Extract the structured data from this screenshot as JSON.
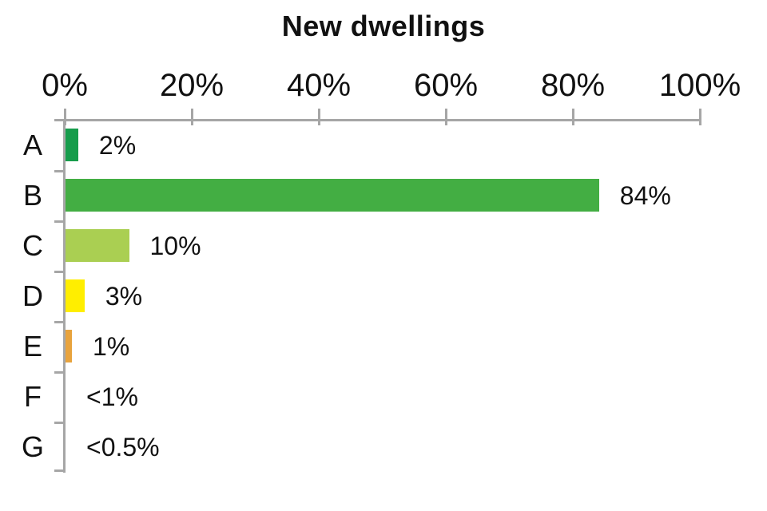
{
  "title": "New dwellings",
  "colors": {
    "axis": "#A6A6A6",
    "text": "#111111",
    "background": "#FFFFFF"
  },
  "chart_data": {
    "type": "bar",
    "orientation": "horizontal",
    "title": "New dwellings",
    "categories": [
      "A",
      "B",
      "C",
      "D",
      "E",
      "F",
      "G"
    ],
    "values": [
      2,
      84,
      10,
      3,
      1,
      0,
      0
    ],
    "value_labels": [
      "2%",
      "84%",
      "10%",
      "3%",
      "1%",
      "<1%",
      "<0.5%"
    ],
    "bar_colors": [
      "#169C4B",
      "#43AE43",
      "#AACF52",
      "#FFEE00",
      "#E8A33D",
      null,
      null
    ],
    "xlim": [
      0,
      100
    ],
    "x_ticks": [
      0,
      20,
      40,
      60,
      80,
      100
    ],
    "x_tick_labels": [
      "0%",
      "20%",
      "40%",
      "60%",
      "80%",
      "100%"
    ],
    "axis_position": "top",
    "grid": false,
    "legend": false
  }
}
